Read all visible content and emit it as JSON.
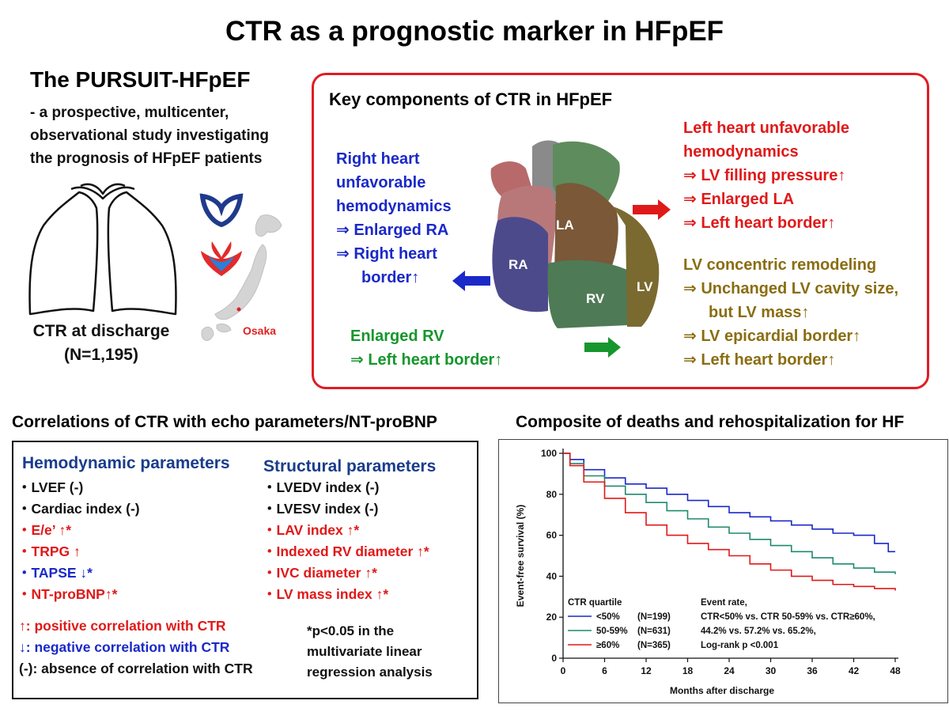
{
  "title": "CTR as a prognostic marker in HFpEF",
  "study": {
    "name": "The PURSUIT-HFpEF",
    "description": [
      "- a prospective, multicenter,",
      "observational study investigating",
      "the prognosis of HFpEF patients"
    ],
    "ctr_caption_1": "CTR at discharge",
    "ctr_caption_2": "(N=1,195)",
    "map_label": "Osaka"
  },
  "key_components": {
    "title": "Key components of CTR in HFpEF",
    "right_heart": [
      "Right heart",
      "unfavorable",
      "hemodynamics",
      "⇒ Enlarged RA",
      "⇒ Right heart",
      "border↑"
    ],
    "enlarged_rv": [
      "Enlarged RV",
      "⇒ Left heart border↑"
    ],
    "left_heart": [
      "Left heart unfavorable",
      "hemodynamics",
      "⇒ LV filling pressure↑",
      "⇒ Enlarged LA",
      "⇒ Left heart border↑"
    ],
    "lv_remodeling": [
      "LV concentric remodeling",
      "⇒ Unchanged LV cavity size,",
      "but LV mass↑",
      "⇒ LV epicardial border↑",
      "⇒ Left heart border↑"
    ],
    "heart_labels": {
      "la": "LA",
      "ra": "RA",
      "rv": "RV",
      "lv": "LV"
    },
    "colors": {
      "red": "#e01919",
      "blue": "#1a29c8",
      "green": "#16962d",
      "olive": "#8a6d10"
    }
  },
  "correlations": {
    "title": "Correlations of CTR with echo parameters/NT-proBNP",
    "hemodynamic_header": "Hemodynamic parameters",
    "structural_header": "Structural parameters",
    "hemodynamic": [
      {
        "text": "・LVEF (-)",
        "tone": "black"
      },
      {
        "text": "・Cardiac index (-)",
        "tone": "black"
      },
      {
        "text": "・E/e’ ↑*",
        "tone": "red"
      },
      {
        "text": "・TRPG ↑",
        "tone": "red"
      },
      {
        "text": "・TAPSE ↓*",
        "tone": "blue"
      },
      {
        "text": "・NT-proBNP↑*",
        "tone": "red"
      }
    ],
    "structural": [
      {
        "text": "・LVEDV index (-)",
        "tone": "black"
      },
      {
        "text": "・LVESV index (-)",
        "tone": "black"
      },
      {
        "text": "・LAV index ↑*",
        "tone": "red"
      },
      {
        "text": "・Indexed RV diameter ↑*",
        "tone": "red"
      },
      {
        "text": "・IVC diameter ↑*",
        "tone": "red"
      },
      {
        "text": "・LV mass index ↑*",
        "tone": "red"
      }
    ],
    "legend": [
      {
        "text": "↑: positive correlation with CTR",
        "tone": "red"
      },
      {
        "text": "↓: negative correlation with CTR",
        "tone": "blue"
      },
      {
        "text": "(-): absence of correlation with CTR",
        "tone": "black"
      }
    ],
    "note": [
      "*p<0.05 in the",
      "multivariate linear",
      "regression analysis"
    ]
  },
  "chart_data": {
    "type": "line",
    "title": "Composite of deaths and rehospitalization for HF",
    "xlabel": "Months after discharge",
    "ylabel": "Event-free survival (%)",
    "xlim": [
      0,
      48
    ],
    "ylim": [
      0,
      100
    ],
    "xticks": [
      0,
      6,
      12,
      18,
      24,
      30,
      36,
      42,
      48
    ],
    "yticks": [
      0,
      20,
      40,
      60,
      80,
      100
    ],
    "legend_title": "CTR quartile",
    "event_rate": [
      "Event rate,",
      "CTR<50% vs. CTR 50-59% vs. CTR≥60%,",
      "44.2% vs. 57.2% vs. 65.2%,",
      "Log-rank p <0.001"
    ],
    "series": [
      {
        "name": "<50%",
        "n": "(N=199)",
        "color": "#1a29c8",
        "x": [
          0,
          1,
          3,
          6,
          9,
          12,
          15,
          18,
          21,
          24,
          27,
          30,
          33,
          36,
          39,
          42,
          45,
          47,
          48
        ],
        "y": [
          100,
          97,
          92,
          88,
          85,
          83,
          80,
          77,
          74,
          71,
          69,
          67,
          65,
          63,
          61,
          60,
          56,
          52,
          52
        ]
      },
      {
        "name": "50-59%",
        "n": "(N=631)",
        "color": "#1f8a6e",
        "x": [
          0,
          1,
          3,
          6,
          9,
          12,
          15,
          18,
          21,
          24,
          27,
          30,
          33,
          36,
          39,
          42,
          45,
          48
        ],
        "y": [
          100,
          95,
          89,
          84,
          80,
          76,
          72,
          68,
          64,
          61,
          58,
          55,
          52,
          49,
          46,
          44,
          42,
          41
        ]
      },
      {
        "name": "≥60%",
        "n": "(N=365)",
        "color": "#e01919",
        "x": [
          0,
          1,
          3,
          6,
          9,
          12,
          15,
          18,
          21,
          24,
          27,
          30,
          33,
          36,
          39,
          42,
          45,
          48
        ],
        "y": [
          100,
          94,
          86,
          78,
          71,
          65,
          60,
          56,
          53,
          50,
          46,
          43,
          40,
          38,
          36,
          35,
          34,
          33
        ]
      }
    ]
  }
}
